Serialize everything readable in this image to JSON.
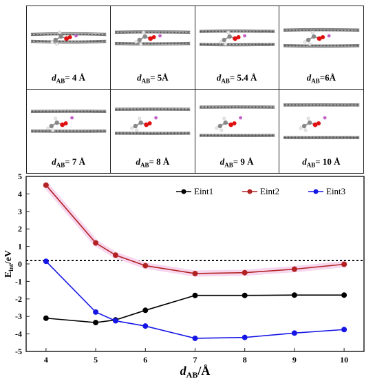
{
  "panels": [
    {
      "d": "d",
      "sub": "AB",
      "value": "= 4 Å",
      "sep": 4
    },
    {
      "d": "d",
      "sub": "AB",
      "value": "= 5Å",
      "sep": 5
    },
    {
      "d": "d",
      "sub": "AB",
      "value": "= 5.4 Å",
      "sep": 5.4
    },
    {
      "d": "d",
      "sub": "AB",
      "value": "=6Å",
      "sep": 6
    },
    {
      "d": "d",
      "sub": "AB",
      "value": "= 7 Å",
      "sep": 7
    },
    {
      "d": "d",
      "sub": "AB",
      "value": "= 8 Å",
      "sep": 8
    },
    {
      "d": "d",
      "sub": "AB",
      "value": "= 9 Å",
      "sep": 9
    },
    {
      "d": "d",
      "sub": "AB",
      "value": "= 10 Å",
      "sep": 10
    }
  ],
  "colors": {
    "eint1": "#000000",
    "eint2": "#b22222",
    "eint2_fill": "#f7d7ef",
    "eint3": "#1515e6",
    "carbon": "#777777",
    "oxygen": "#e01010",
    "hydrogen": "#e8e8e8",
    "lithium": "#c060c8"
  },
  "chart_data": {
    "type": "line",
    "ylabel_main": "E",
    "ylabel_sub": "int",
    "ylabel_unit": "/eV",
    "xlabel_main": "d",
    "xlabel_sub": "AB",
    "xlabel_unit": "/Å",
    "xlim": [
      3.6,
      10.4
    ],
    "ylim": [
      -5,
      5
    ],
    "xticks": [
      4,
      5,
      6,
      7,
      8,
      9,
      10
    ],
    "yticks": [
      -5,
      -4,
      -3,
      -2,
      -1,
      0,
      1,
      2,
      3,
      4,
      5
    ],
    "reference_line_y": 0.2,
    "legend_position": "top-right",
    "series": [
      {
        "name": "Eint1",
        "x": [
          4,
          5,
          5.4,
          6,
          7,
          8,
          9,
          10
        ],
        "y": [
          -3.1,
          -3.35,
          -3.2,
          -2.65,
          -1.8,
          -1.8,
          -1.78,
          -1.78
        ]
      },
      {
        "name": "Eint2",
        "x": [
          4,
          5,
          5.4,
          6,
          7,
          8,
          9,
          10
        ],
        "y": [
          4.5,
          1.2,
          0.5,
          -0.1,
          -0.55,
          -0.5,
          -0.3,
          -0.02
        ]
      },
      {
        "name": "Eint3",
        "x": [
          4,
          5,
          5.4,
          6,
          7,
          8,
          9,
          10
        ],
        "y": [
          0.15,
          -2.75,
          -3.25,
          -3.55,
          -4.25,
          -4.2,
          -3.95,
          -3.75
        ]
      }
    ]
  }
}
